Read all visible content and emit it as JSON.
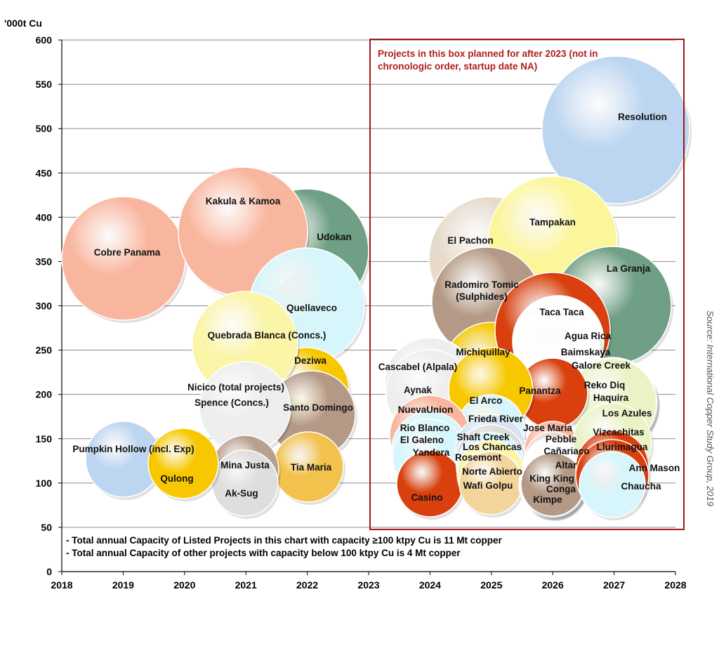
{
  "chart_data": {
    "type": "bubble",
    "ylabel": "'000t Cu",
    "xlim": [
      2018,
      2028
    ],
    "ylim": [
      0,
      600
    ],
    "xticks": [
      "2018",
      "2019",
      "2020",
      "2021",
      "2022",
      "2023",
      "2024",
      "2025",
      "2026",
      "2027",
      "2028"
    ],
    "yticks": [
      "0",
      "50",
      "100",
      "150",
      "200",
      "250",
      "300",
      "350",
      "400",
      "450",
      "500",
      "550",
      "600"
    ],
    "grid": true,
    "box_note": [
      "Projects in this box planned for after 2023 (not in",
      "chronologic order, startup date NA)"
    ],
    "box_range": {
      "x": [
        2023,
        2028
      ],
      "y": [
        50,
        600
      ]
    },
    "notes": [
      "- Total annual Capacity of Listed Projects in this chart with capacity ≥100 ktpy Cu is 11 Mt  copper",
      "- Total annual Capacity of other projects with capacity below 100 ktpy Cu is 4 Mt copper"
    ],
    "source": "Source: International Copper Study Group, 2019",
    "bubbles": [
      {
        "name": "Udokan",
        "x": 2022.0,
        "y": 355,
        "color": "#6f9f84"
      },
      {
        "name": "Cobre Panama",
        "x": 2019.0,
        "y": 350,
        "color": "#f9b69e"
      },
      {
        "name": "Kakula & Kamoa",
        "x": 2021.0,
        "y": 380,
        "color": "#f9b69e"
      },
      {
        "name": "Quellaveco",
        "x": 2022.0,
        "y": 300,
        "color": "#d6f6fb"
      },
      {
        "name": "Deziwa",
        "x": 2022.0,
        "y": 200,
        "color": "#f7c800"
      },
      {
        "name": "Quebrada Blanca (Concs.)",
        "x": 2021.0,
        "y": 250,
        "color": "#fbf5a8"
      },
      {
        "name": "Santo Domingo",
        "x": 2022.0,
        "y": 185,
        "color": "#b49a86"
      },
      {
        "name": "Tia Maria",
        "x": 2022.0,
        "y": 120,
        "color": "#f3c24d"
      },
      {
        "name": "Nicico (total projects)",
        "x": 2021.0,
        "y": 200,
        "color": "#f0f0f0"
      },
      {
        "name": "Spence (Concs.)",
        "x": 2021.0,
        "y": 185,
        "color": "#eeeeee"
      },
      {
        "name": "Mina Justa",
        "x": 2021.0,
        "y": 120,
        "color": "#b9a08d"
      },
      {
        "name": "Ak-Sug",
        "x": 2021.0,
        "y": 100,
        "color": "#dedede"
      },
      {
        "name": "Pumpkin Hollow (incl. Exp)",
        "x": 2019.0,
        "y": 130,
        "color": "#bcd5f0"
      },
      {
        "name": "Qulong",
        "x": 2020.0,
        "y": 120,
        "color": "#f7c800"
      },
      {
        "name": "Resolution",
        "x": 2027.0,
        "y": 500,
        "color": "#bcd5f0"
      },
      {
        "name": "El Pachon",
        "x": 2025.0,
        "y": 350,
        "color": "#e7dacb"
      },
      {
        "name": "Tampakan",
        "x": 2026.0,
        "y": 375,
        "color": "#fbf69a"
      },
      {
        "name": "La Granja",
        "x": 2027.0,
        "y": 300,
        "color": "#6f9f84"
      },
      {
        "name": "Radomiro Tomic (Sulphides)",
        "x": 2024.8,
        "y": 300,
        "color": "#b49a86"
      },
      {
        "name": "Michiquillay",
        "x": 2025.0,
        "y": 225,
        "color": "#f7c800"
      },
      {
        "name": "Taca Taca",
        "x": 2026.0,
        "y": 270,
        "color": "#d9400e"
      },
      {
        "name": "Agua Rica",
        "x": 2026.5,
        "y": 255,
        "color": "#ffffff"
      },
      {
        "name": "Baimskaya",
        "x": 2026.5,
        "y": 235,
        "color": "#ffffff"
      },
      {
        "name": "Galore Creek",
        "x": 2026.8,
        "y": 220,
        "color": "#ffffff"
      },
      {
        "name": "Reko Diq",
        "x": 2027.0,
        "y": 200,
        "color": "#eaf3c6"
      },
      {
        "name": "Haquira",
        "x": 2027.0,
        "y": 190,
        "color": "#eaf3c6"
      },
      {
        "name": "Los Azules",
        "x": 2027.2,
        "y": 175,
        "color": "#eaf3c6"
      },
      {
        "name": "Panantza",
        "x": 2026.0,
        "y": 200,
        "color": "#d9400e"
      },
      {
        "name": "Cascabel (Alpala)",
        "x": 2024.0,
        "y": 205,
        "color": "#efefef"
      },
      {
        "name": "Aynak",
        "x": 2024.0,
        "y": 200,
        "color": "#eeeeee"
      },
      {
        "name": "NuevaUnion",
        "x": 2024.0,
        "y": 175,
        "color": "#eeeeee"
      },
      {
        "name": "El Arco",
        "x": 2025.0,
        "y": 195,
        "color": "#f7c800"
      },
      {
        "name": "Frieda River",
        "x": 2025.0,
        "y": 170,
        "color": "#d6f6fb"
      },
      {
        "name": "Rio Blanco",
        "x": 2024.0,
        "y": 150,
        "color": "#f9b69e"
      },
      {
        "name": "El Galeno",
        "x": 2024.0,
        "y": 140,
        "color": "#d6f6fb"
      },
      {
        "name": "Yandera",
        "x": 2024.0,
        "y": 130,
        "color": "#d6f6fb"
      },
      {
        "name": "Casino",
        "x": 2024.0,
        "y": 100,
        "color": "#d9400e"
      },
      {
        "name": "Shaft Creek",
        "x": 2025.0,
        "y": 140,
        "color": "#d6e3f2"
      },
      {
        "name": "Los Chancas",
        "x": 2025.0,
        "y": 130,
        "color": "#dddddd"
      },
      {
        "name": "Rosemont",
        "x": 2025.0,
        "y": 120,
        "color": "#d6f6fb"
      },
      {
        "name": "Norte Abierto",
        "x": 2025.0,
        "y": 115,
        "color": "#fbf5a8"
      },
      {
        "name": "Wafi Golpu",
        "x": 2025.0,
        "y": 100,
        "color": "#f3d49b"
      },
      {
        "name": "Jose Maria",
        "x": 2026.0,
        "y": 155,
        "color": "#f9b69e"
      },
      {
        "name": "Pebble",
        "x": 2026.0,
        "y": 145,
        "color": "#e7dacb"
      },
      {
        "name": "Cañariaco",
        "x": 2026.0,
        "y": 130,
        "color": "#ffffff"
      },
      {
        "name": "Altar",
        "x": 2026.0,
        "y": 115,
        "color": "#b49a86"
      },
      {
        "name": "King King",
        "x": 2026.0,
        "y": 105,
        "color": "#b49a86"
      },
      {
        "name": "Conga",
        "x": 2026.0,
        "y": 100,
        "color": "#b49a86"
      },
      {
        "name": "Kimpe",
        "x": 2026.0,
        "y": 100,
        "color": "#b49a86"
      },
      {
        "name": "Vizcachitas",
        "x": 2027.0,
        "y": 150,
        "color": "#eaf3c6"
      },
      {
        "name": "Llurimagua",
        "x": 2027.0,
        "y": 130,
        "color": "#d9400e"
      },
      {
        "name": "Ann Mason",
        "x": 2027.4,
        "y": 115,
        "color": "#d9400e"
      },
      {
        "name": "Chaucha",
        "x": 2027.0,
        "y": 100,
        "color": "#d6f6fb"
      }
    ]
  }
}
